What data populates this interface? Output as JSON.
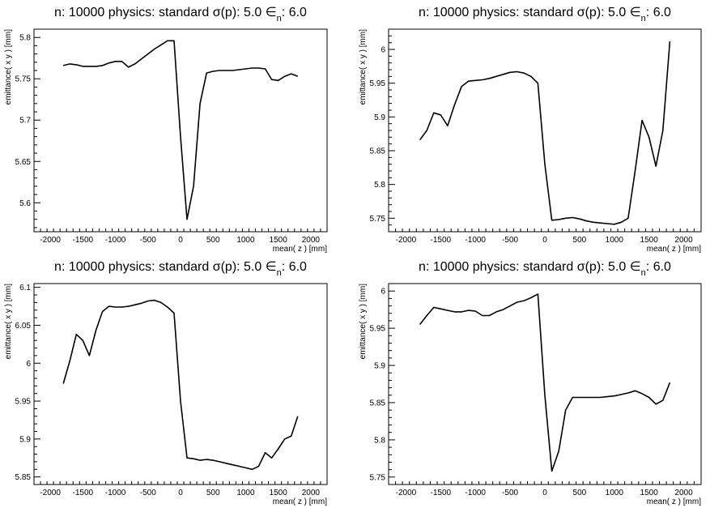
{
  "figure": {
    "panel_title": "n: 10000 physics: standard σ(p): 5.0 ∈",
    "title_sub": "n",
    "title_tail": ": 6.0",
    "xlabel": "mean( z ) [mm]",
    "ylabel": "emittance( x y ) [mm]"
  },
  "chart_data": [
    {
      "type": "line",
      "title": "n: 10000 physics: standard σ(p): 5.0 ∈n: 6.0",
      "xlabel": "mean( z ) [mm]",
      "ylabel": "emittance( x y ) [mm]",
      "xlim": [
        -2250,
        2250
      ],
      "ylim": [
        5.565,
        5.81
      ],
      "xticks": [
        -2000,
        -1500,
        -1000,
        -500,
        0,
        500,
        1000,
        1500,
        2000
      ],
      "yticks": [
        5.6,
        5.65,
        5.7,
        5.75,
        5.8
      ],
      "ytick_labels": [
        "5.6",
        "5.65",
        "5.7",
        "5.75",
        "5.8"
      ],
      "series": [
        {
          "x": [
            -1800,
            -1700,
            -1600,
            -1500,
            -1400,
            -1300,
            -1200,
            -1100,
            -1000,
            -900,
            -800,
            -700,
            -600,
            -500,
            -400,
            -300,
            -200,
            -100,
            0,
            100,
            200,
            300,
            400,
            500,
            600,
            700,
            800,
            900,
            1000,
            1100,
            1200,
            1300,
            1400,
            1500,
            1600,
            1700,
            1800
          ],
          "y": [
            5.766,
            5.768,
            5.767,
            5.765,
            5.765,
            5.765,
            5.766,
            5.769,
            5.771,
            5.771,
            5.764,
            5.768,
            5.774,
            5.78,
            5.786,
            5.791,
            5.796,
            5.796,
            5.68,
            5.58,
            5.62,
            5.72,
            5.757,
            5.759,
            5.76,
            5.76,
            5.76,
            5.761,
            5.762,
            5.763,
            5.763,
            5.762,
            5.749,
            5.748,
            5.753,
            5.756,
            5.753
          ]
        }
      ]
    },
    {
      "type": "line",
      "title": "n: 10000 physics: standard σ(p): 5.0 ∈n: 6.0",
      "xlabel": "mean( z ) [mm]",
      "ylabel": "emittance( x y ) [mm]",
      "xlim": [
        -2250,
        2250
      ],
      "ylim": [
        5.73,
        6.03
      ],
      "xticks": [
        -2000,
        -1500,
        -1000,
        -500,
        0,
        500,
        1000,
        1500,
        2000
      ],
      "yticks": [
        5.75,
        5.8,
        5.85,
        5.9,
        5.95,
        6.0
      ],
      "ytick_labels": [
        "5.75",
        "5.8",
        "5.85",
        "5.9",
        "5.95",
        "6"
      ],
      "series": [
        {
          "x": [
            -1800,
            -1700,
            -1600,
            -1500,
            -1400,
            -1300,
            -1200,
            -1100,
            -1000,
            -900,
            -800,
            -700,
            -600,
            -500,
            -400,
            -300,
            -200,
            -100,
            0,
            100,
            200,
            300,
            400,
            500,
            600,
            700,
            800,
            900,
            1000,
            1100,
            1200,
            1300,
            1400,
            1500,
            1600,
            1700,
            1800
          ],
          "y": [
            5.866,
            5.88,
            5.906,
            5.903,
            5.887,
            5.918,
            5.945,
            5.953,
            5.954,
            5.955,
            5.957,
            5.96,
            5.963,
            5.966,
            5.967,
            5.965,
            5.96,
            5.95,
            5.83,
            5.747,
            5.748,
            5.75,
            5.751,
            5.749,
            5.746,
            5.744,
            5.743,
            5.742,
            5.741,
            5.744,
            5.75,
            5.82,
            5.895,
            5.87,
            5.827,
            5.88,
            6.012
          ]
        }
      ]
    },
    {
      "type": "line",
      "title": "n: 10000 physics: standard σ(p): 5.0 ∈n: 6.0",
      "xlabel": "mean( z ) [mm]",
      "ylabel": "emittance( x y ) [mm]",
      "xlim": [
        -2250,
        2250
      ],
      "ylim": [
        5.84,
        6.105
      ],
      "xticks": [
        -2000,
        -1500,
        -1000,
        -500,
        0,
        500,
        1000,
        1500,
        2000
      ],
      "yticks": [
        5.85,
        5.9,
        5.95,
        6.0,
        6.05,
        6.1
      ],
      "ytick_labels": [
        "5.85",
        "5.9",
        "5.95",
        "6",
        "6.05",
        "6.1"
      ],
      "series": [
        {
          "x": [
            -1800,
            -1700,
            -1600,
            -1500,
            -1400,
            -1300,
            -1200,
            -1100,
            -1000,
            -900,
            -800,
            -700,
            -600,
            -500,
            -400,
            -300,
            -200,
            -100,
            0,
            100,
            200,
            300,
            400,
            500,
            600,
            700,
            800,
            900,
            1000,
            1100,
            1200,
            1300,
            1400,
            1500,
            1600,
            1700,
            1800
          ],
          "y": [
            5.973,
            6.003,
            6.038,
            6.03,
            6.01,
            6.043,
            6.068,
            6.075,
            6.074,
            6.074,
            6.075,
            6.077,
            6.079,
            6.082,
            6.083,
            6.08,
            6.074,
            6.066,
            5.95,
            5.875,
            5.874,
            5.872,
            5.873,
            5.872,
            5.87,
            5.868,
            5.866,
            5.864,
            5.862,
            5.86,
            5.864,
            5.882,
            5.875,
            5.887,
            5.9,
            5.904,
            5.93
          ]
        }
      ]
    },
    {
      "type": "line",
      "title": "n: 10000 physics: standard σ(p): 5.0 ∈n: 6.0",
      "xlabel": "mean( z ) [mm]",
      "ylabel": "emittance( x y ) [mm]",
      "xlim": [
        -2250,
        2250
      ],
      "ylim": [
        5.74,
        6.01
      ],
      "xticks": [
        -2000,
        -1500,
        -1000,
        -500,
        0,
        500,
        1000,
        1500,
        2000
      ],
      "yticks": [
        5.75,
        5.8,
        5.85,
        5.9,
        5.95,
        6.0
      ],
      "ytick_labels": [
        "5.75",
        "5.8",
        "5.85",
        "5.9",
        "5.95",
        "6"
      ],
      "series": [
        {
          "x": [
            -1800,
            -1700,
            -1600,
            -1500,
            -1400,
            -1300,
            -1200,
            -1100,
            -1000,
            -900,
            -800,
            -700,
            -600,
            -500,
            -400,
            -300,
            -200,
            -100,
            0,
            100,
            200,
            300,
            400,
            500,
            600,
            700,
            800,
            900,
            1000,
            1100,
            1200,
            1300,
            1400,
            1500,
            1600,
            1700,
            1800
          ],
          "y": [
            5.955,
            5.967,
            5.978,
            5.976,
            5.974,
            5.972,
            5.972,
            5.974,
            5.973,
            5.967,
            5.967,
            5.972,
            5.975,
            5.98,
            5.985,
            5.987,
            5.991,
            5.996,
            5.86,
            5.758,
            5.785,
            5.84,
            5.857,
            5.857,
            5.857,
            5.857,
            5.857,
            5.858,
            5.859,
            5.861,
            5.863,
            5.866,
            5.862,
            5.857,
            5.848,
            5.853,
            5.877
          ]
        }
      ]
    }
  ]
}
